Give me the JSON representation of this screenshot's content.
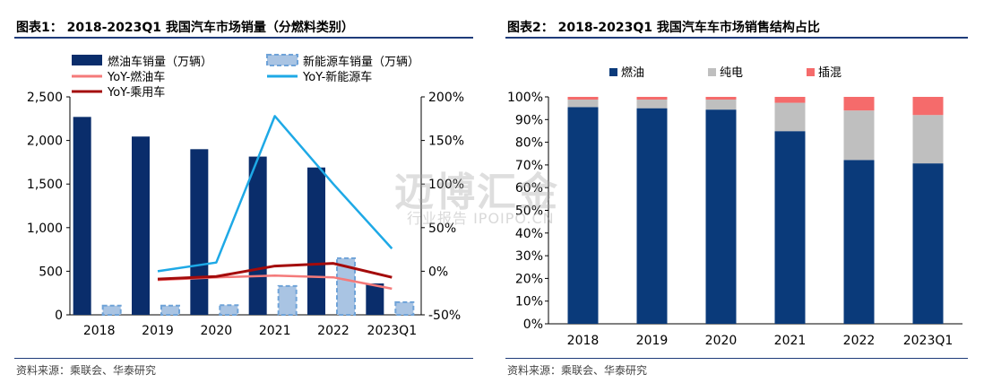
{
  "watermark": {
    "main": "迈博汇金",
    "sub": "行业报告 IPOIPO.CN"
  },
  "charts": [
    {
      "title": "图表1：  2018-2023Q1 我国汽车市场销量（分燃料类别）",
      "source": "资料来源：乘联会、华泰研究",
      "chart_data": {
        "type": "bar",
        "categories": [
          "2018",
          "2019",
          "2020",
          "2021",
          "2022",
          "2023Q1"
        ],
        "ylim": [
          0,
          2500
        ],
        "yticks": [
          "0",
          "500",
          "1,000",
          "1,500",
          "2,000",
          "2,500"
        ],
        "y2lim": [
          -50,
          200
        ],
        "y2ticks": [
          "-50%",
          "0%",
          "50%",
          "100%",
          "150%",
          "200%"
        ],
        "series": [
          {
            "name": "燃油车销量（万辆）",
            "type": "bar",
            "axis": "left",
            "color": "#0a2d6b",
            "values": [
              2270,
              2045,
              1900,
              1815,
              1690,
              360
            ]
          },
          {
            "name": "新能源车销量（万辆）",
            "type": "bar",
            "axis": "left",
            "color": "#a9c4e3",
            "style": "dashed",
            "values": [
              105,
              105,
              110,
              330,
              650,
              145
            ]
          },
          {
            "name": "YoY-燃油车",
            "type": "line",
            "axis": "right",
            "color": "#f47a7a",
            "values": [
              null,
              -10,
              -7,
              -5,
              -7,
              -20
            ]
          },
          {
            "name": "YoY-新能源车",
            "type": "line",
            "axis": "right",
            "color": "#1ea9e6",
            "values": [
              null,
              0,
              10,
              178,
              100,
              26
            ]
          },
          {
            "name": "YoY-乘用车",
            "type": "line",
            "axis": "right",
            "color": "#a40b0b",
            "values": [
              null,
              -9,
              -6,
              6,
              9,
              -7
            ]
          }
        ]
      }
    },
    {
      "title": "图表2：  2018-2023Q1 我国汽车车市场销售结构占比",
      "source": "资料来源：乘联会、华泰研究",
      "chart_data": {
        "type": "bar",
        "stacked": true,
        "categories": [
          "2018",
          "2019",
          "2020",
          "2021",
          "2022",
          "2023Q1"
        ],
        "ylim": [
          0,
          100
        ],
        "yticks": [
          "0%",
          "10%",
          "20%",
          "30%",
          "40%",
          "50%",
          "60%",
          "70%",
          "80%",
          "90%",
          "100%"
        ],
        "series": [
          {
            "name": "燃油",
            "color": "#0a3a7a",
            "values": [
              95.5,
              95,
              94.4,
              84.9,
              72.2,
              70.7
            ]
          },
          {
            "name": "纯电",
            "color": "#bfbfbf",
            "values": [
              3.3,
              3.8,
              4.4,
              12.5,
              21.8,
              21.3
            ]
          },
          {
            "name": "插混",
            "color": "#f56b6b",
            "values": [
              1.2,
              1.2,
              1.2,
              2.6,
              6.0,
              8.0
            ]
          }
        ]
      }
    }
  ]
}
